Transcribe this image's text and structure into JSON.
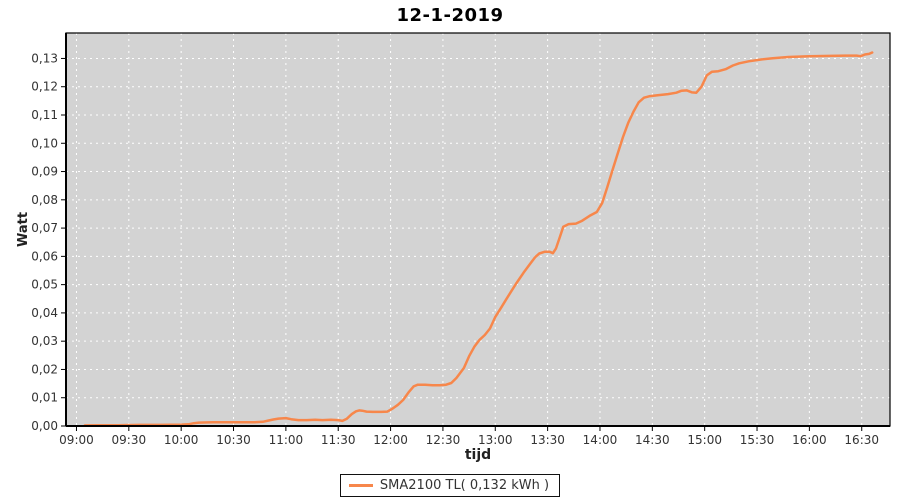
{
  "title": "12-1-2019",
  "colors": {
    "line": "#f7874b",
    "plot_bg": "#d3d3d3",
    "grid": "#ffffff",
    "axis": "#000000",
    "tick_label": "#333333",
    "title_text": "#000000",
    "legend_border": "#111111",
    "legend_bg": "#ffffff"
  },
  "chart_data": {
    "type": "line",
    "title": "12-1-2019",
    "xlabel": "tijd",
    "ylabel": "Watt",
    "grid": "white dashed gridlines on gray plot background",
    "legend_position": "bottom-center",
    "x_ticks": [
      "09:00",
      "09:30",
      "10:00",
      "10:30",
      "11:00",
      "11:30",
      "12:00",
      "12:30",
      "13:00",
      "13:30",
      "14:00",
      "14:30",
      "15:00",
      "15:30",
      "16:00",
      "16:30"
    ],
    "y_ticks": [
      "0,00",
      "0,01",
      "0,02",
      "0,03",
      "0,04",
      "0,05",
      "0,06",
      "0,07",
      "0,08",
      "0,09",
      "0,10",
      "0,11",
      "0,12",
      "0,13"
    ],
    "xlim_hours": [
      8.9,
      16.77
    ],
    "ylim": [
      0,
      0.139
    ],
    "decimal_separator": ",",
    "legend": {
      "entries": [
        {
          "label": "SMA2100 TL( 0,132 kWh )",
          "color": "#f7874b"
        }
      ]
    },
    "series": [
      {
        "name": "SMA2100 TL( 0,132 kWh )",
        "total_kwh_label": "0,132 kWh",
        "points": [
          [
            9.08,
            0.0002
          ],
          [
            9.2,
            0.0003
          ],
          [
            9.4,
            0.0003
          ],
          [
            9.6,
            0.0004
          ],
          [
            9.8,
            0.0004
          ],
          [
            10.0,
            0.0005
          ],
          [
            10.07,
            0.0006
          ],
          [
            10.12,
            0.001
          ],
          [
            10.17,
            0.0012
          ],
          [
            10.3,
            0.0013
          ],
          [
            10.5,
            0.0013
          ],
          [
            10.7,
            0.0013
          ],
          [
            10.78,
            0.0015
          ],
          [
            10.83,
            0.0019
          ],
          [
            10.88,
            0.0023
          ],
          [
            10.93,
            0.0026
          ],
          [
            11.0,
            0.0028
          ],
          [
            11.05,
            0.0024
          ],
          [
            11.12,
            0.0021
          ],
          [
            11.2,
            0.0021
          ],
          [
            11.28,
            0.0022
          ],
          [
            11.35,
            0.0021
          ],
          [
            11.43,
            0.0022
          ],
          [
            11.5,
            0.0021
          ],
          [
            11.54,
            0.0018
          ],
          [
            11.58,
            0.0025
          ],
          [
            11.63,
            0.0042
          ],
          [
            11.67,
            0.0052
          ],
          [
            11.7,
            0.0055
          ],
          [
            11.73,
            0.0054
          ],
          [
            11.77,
            0.0051
          ],
          [
            11.83,
            0.005
          ],
          [
            11.9,
            0.005
          ],
          [
            11.97,
            0.0051
          ],
          [
            12.02,
            0.0062
          ],
          [
            12.07,
            0.0075
          ],
          [
            12.12,
            0.0092
          ],
          [
            12.17,
            0.0118
          ],
          [
            12.22,
            0.014
          ],
          [
            12.26,
            0.0146
          ],
          [
            12.33,
            0.0146
          ],
          [
            12.4,
            0.0144
          ],
          [
            12.47,
            0.0144
          ],
          [
            12.53,
            0.0146
          ],
          [
            12.58,
            0.0152
          ],
          [
            12.63,
            0.017
          ],
          [
            12.7,
            0.0205
          ],
          [
            12.75,
            0.0247
          ],
          [
            12.8,
            0.028
          ],
          [
            12.85,
            0.0305
          ],
          [
            12.9,
            0.0322
          ],
          [
            12.95,
            0.0345
          ],
          [
            13.0,
            0.0386
          ],
          [
            13.05,
            0.0415
          ],
          [
            13.1,
            0.0445
          ],
          [
            13.15,
            0.0475
          ],
          [
            13.2,
            0.0504
          ],
          [
            13.27,
            0.0542
          ],
          [
            13.33,
            0.0572
          ],
          [
            13.38,
            0.0597
          ],
          [
            13.42,
            0.061
          ],
          [
            13.47,
            0.0616
          ],
          [
            13.52,
            0.0616
          ],
          [
            13.55,
            0.0611
          ],
          [
            13.58,
            0.0628
          ],
          [
            13.62,
            0.0672
          ],
          [
            13.65,
            0.0705
          ],
          [
            13.7,
            0.0714
          ],
          [
            13.77,
            0.0716
          ],
          [
            13.83,
            0.0726
          ],
          [
            13.9,
            0.0743
          ],
          [
            13.97,
            0.0757
          ],
          [
            14.02,
            0.0788
          ],
          [
            14.07,
            0.0845
          ],
          [
            14.12,
            0.0905
          ],
          [
            14.17,
            0.0965
          ],
          [
            14.22,
            0.1022
          ],
          [
            14.27,
            0.1072
          ],
          [
            14.32,
            0.1112
          ],
          [
            14.37,
            0.1145
          ],
          [
            14.42,
            0.1161
          ],
          [
            14.47,
            0.1166
          ],
          [
            14.55,
            0.117
          ],
          [
            14.65,
            0.1174
          ],
          [
            14.73,
            0.1179
          ],
          [
            14.78,
            0.1186
          ],
          [
            14.83,
            0.1187
          ],
          [
            14.88,
            0.118
          ],
          [
            14.92,
            0.1179
          ],
          [
            14.97,
            0.12
          ],
          [
            15.02,
            0.124
          ],
          [
            15.07,
            0.1253
          ],
          [
            15.13,
            0.1255
          ],
          [
            15.2,
            0.1262
          ],
          [
            15.27,
            0.1275
          ],
          [
            15.33,
            0.1283
          ],
          [
            15.42,
            0.129
          ],
          [
            15.53,
            0.1296
          ],
          [
            15.65,
            0.1301
          ],
          [
            15.8,
            0.1305
          ],
          [
            16.0,
            0.1308
          ],
          [
            16.2,
            0.1309
          ],
          [
            16.35,
            0.131
          ],
          [
            16.45,
            0.131
          ],
          [
            16.49,
            0.1308
          ],
          [
            16.53,
            0.1314
          ],
          [
            16.57,
            0.1316
          ],
          [
            16.6,
            0.1321
          ]
        ]
      }
    ]
  }
}
